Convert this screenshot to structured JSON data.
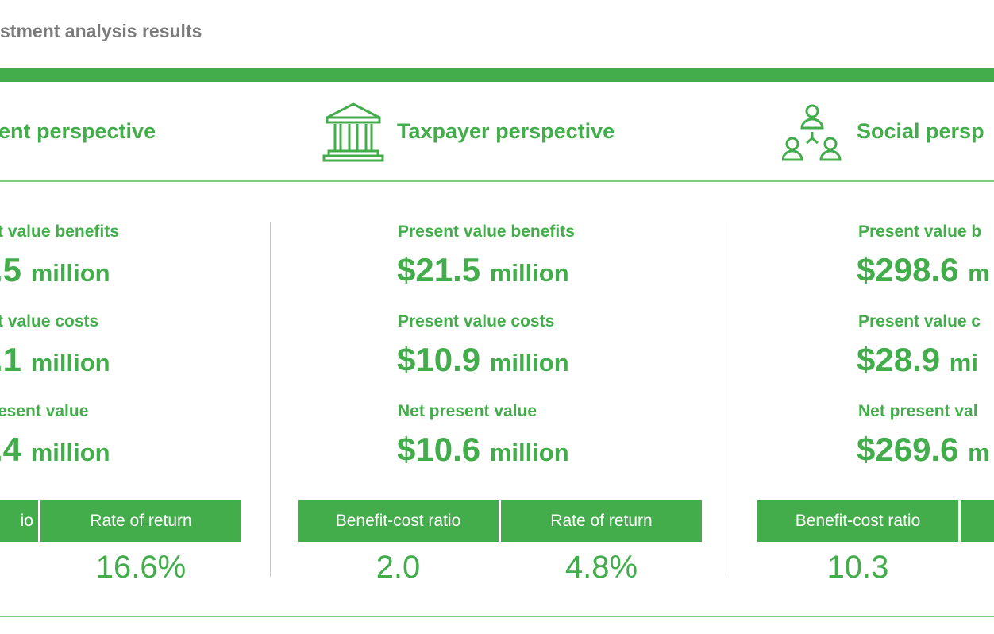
{
  "title": "stment analysis results",
  "perspectives": [
    {
      "heading": "ent perspective",
      "rows": [
        {
          "label": "t value benefits",
          "amount": ".5",
          "unit": "million"
        },
        {
          "label": "t value costs",
          "amount": ".1",
          "unit": "million"
        },
        {
          "label": "esent value",
          "amount": ".4",
          "unit": "million"
        }
      ],
      "ratio_label": "io",
      "return_label": "Rate of return",
      "return_value": "16.6%"
    },
    {
      "heading": "Taxpayer perspective",
      "icon": "government-building-icon",
      "rows": [
        {
          "label": "Present value benefits",
          "amount": "$21.5",
          "unit": "million"
        },
        {
          "label": "Present value costs",
          "amount": "$10.9",
          "unit": "million"
        },
        {
          "label": "Net present value",
          "amount": "$10.6",
          "unit": "million"
        }
      ],
      "ratio_label": "Benefit-cost ratio",
      "ratio_value": "2.0",
      "return_label": "Rate of return",
      "return_value": "4.8%"
    },
    {
      "heading": "Social persp",
      "icon": "people-network-icon",
      "rows": [
        {
          "label": "Present value b",
          "amount": "$298.6",
          "unit": "m"
        },
        {
          "label": "Present value c",
          "amount": "$28.9",
          "unit": "mi"
        },
        {
          "label": "Net present val",
          "amount": "$269.6",
          "unit": "m"
        }
      ],
      "ratio_label": "Benefit-cost ratio",
      "ratio_value": "10.3"
    }
  ],
  "colors": {
    "accent": "#43ad4b",
    "title": "#7b7b7b"
  }
}
